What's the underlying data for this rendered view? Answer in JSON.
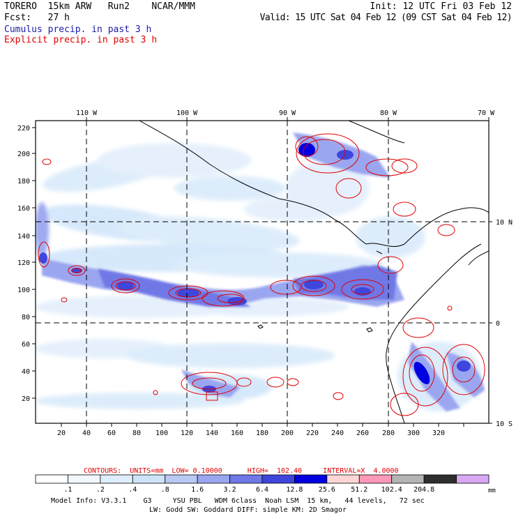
{
  "header": {
    "model": "TORERO  15km ARW   Run2    NCAR/MMM",
    "init": "Init: 12 UTC Fri 03 Feb 12",
    "fcst": "Fcst:   27 h",
    "valid": "Valid: 15 UTC Sat 04 Feb 12 (09 CST Sat 04 Feb 12)",
    "cumulus": "Cumulus precip. in past 3 h",
    "explicit": "Explicit precip. in past 3 h"
  },
  "colors": {
    "cumulus_text": "#1a1aa6",
    "explicit_text": "#e00000",
    "contour": "#e00000",
    "precip_light": "#dcecfb",
    "precip_mid": "#9aa6f0",
    "precip_strong": "#4a52dd",
    "precip_max": "#0000e0"
  },
  "map": {
    "top_lon_labels": [
      "110 W",
      "100 W",
      "90 W",
      "80 W",
      "70 W"
    ],
    "right_lat_labels": [
      "10 N",
      "0",
      "10 S"
    ],
    "left_y_ticks": [
      "220",
      "200",
      "180",
      "160",
      "140",
      "120",
      "100",
      "80",
      "60",
      "40",
      "20"
    ],
    "bottom_x_ticks": [
      "20",
      "40",
      "60",
      "80",
      "100",
      "120",
      "140",
      "160",
      "180",
      "200",
      "220",
      "240",
      "260",
      "280",
      "300",
      "320"
    ]
  },
  "contours_info": {
    "text": "CONTOURS:  UNITS=mm  LOW= 0.10000      HIGH=  102.40     INTERVAL=X  4.0000"
  },
  "colorbar": {
    "labels": [
      ".1",
      ".2",
      ".4",
      ".8",
      "1.6",
      "3.2",
      "6.4",
      "12.8",
      "25.6",
      "51.2",
      "102.4",
      "204.8"
    ],
    "units": "mm",
    "colors": [
      "#ffffff",
      "#f2f8fe",
      "#dfeefc",
      "#cde3f8",
      "#b9c9f4",
      "#9aa6f0",
      "#6f78e6",
      "#3f46dc",
      "#0000e0",
      "#ffd6d6",
      "#ff99b8",
      "#b4b4b4",
      "#2e2e2e",
      "#d8a8f4"
    ]
  },
  "footer": {
    "line1": "Model Info: V3.3.1    G3     YSU PBL   WDM 6class  Noah LSM  15 km,   44 levels,   72 sec",
    "line2": "LW: Godd SW: Goddard DIFF: simple KM: 2D Smagor"
  }
}
